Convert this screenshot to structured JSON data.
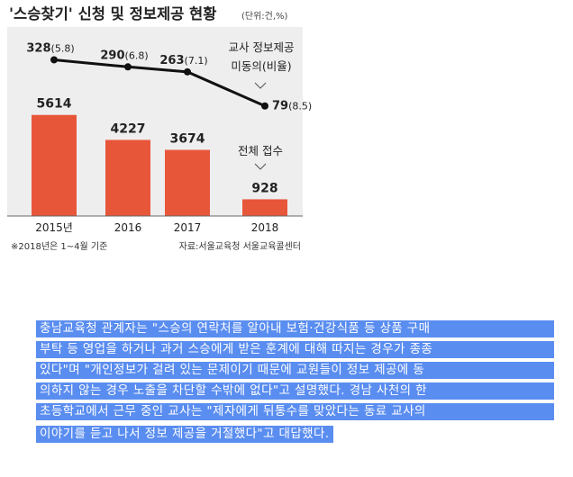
{
  "chart_data": {
    "type": "bar",
    "title": "'스승찾기' 신청 및 정보제공 현황",
    "unit_note": "(단위:건,%)",
    "categories": [
      "2015년",
      "2016",
      "2017",
      "2018"
    ],
    "series": [
      {
        "name": "전체 접수",
        "type": "bar",
        "values": [
          5614,
          4227,
          3674,
          928
        ],
        "color": "#e8563a"
      },
      {
        "name": "교사 정보제공 미동의(비율)",
        "type": "line",
        "values": [
          328,
          290,
          263,
          79
        ],
        "ratios": [
          "5.8",
          "6.8",
          "7.1",
          "8.5"
        ],
        "color": "#111111"
      }
    ],
    "bar_labels": [
      "5614",
      "4227",
      "3674",
      "928"
    ],
    "line_labels": [
      {
        "value": "328",
        "ratio": "(5.8)"
      },
      {
        "value": "290",
        "ratio": "(6.8)"
      },
      {
        "value": "263",
        "ratio": "(7.1)"
      },
      {
        "value": "79",
        "ratio": "(8.5)"
      }
    ],
    "callout_line": [
      "교사 정보제공",
      "미동의(비율)"
    ],
    "callout_bar": "전체 접수",
    "footnote": "※2018년은 1~4월 기준",
    "source": "자료:서울교육청 서울교육콜센터",
    "bar_ylim": [
      0,
      6000
    ],
    "line_ylim": [
      0,
      340
    ]
  },
  "article": {
    "lines": [
      "충남교육청 관계자는 \"스승의 연락처를 알아내 보험·건강식품 등 상품 구매",
      "부탁 등 영업을 하거나 과거 스승에게 받은 훈계에 대해 따지는 경우가 종종",
      "있다\"며 \"개인정보가 걸려 있는 문제이기 때문에 교원들이 정보 제공에 동",
      "의하지 않는 경우 노출을 차단할 수밖에 없다\"고 설명했다. 경남 사천의 한",
      "초등학교에서 근무 중인 교사는 \"제자에게 뒤통수를 맞았다는 동료 교사의",
      "이야기를 듣고 나서 정보 제공을 거절했다\"고 대답했다."
    ]
  }
}
